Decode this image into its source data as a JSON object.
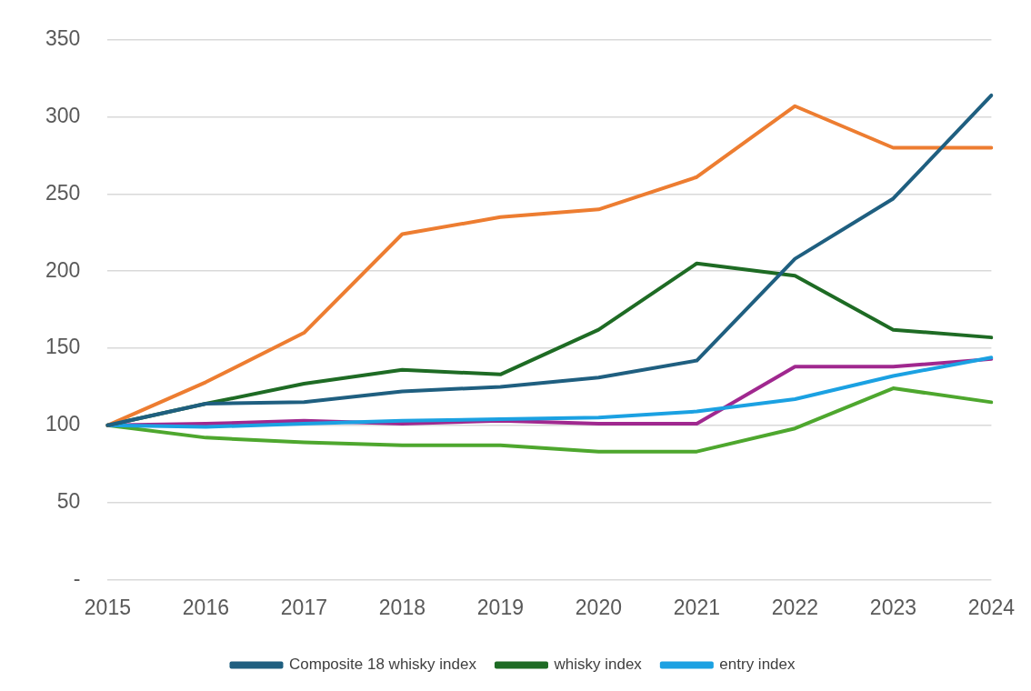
{
  "chart_data": {
    "type": "line",
    "categories": [
      "2015",
      "2016",
      "2017",
      "2018",
      "2019",
      "2020",
      "2021",
      "2022",
      "2023",
      "2024"
    ],
    "series": [
      {
        "name": "Composite 18 whisky index",
        "color": "#1f5f80",
        "values": [
          100,
          114,
          115,
          122,
          125,
          131,
          142,
          208,
          247,
          314
        ]
      },
      {
        "color": "#ed7d31",
        "values": [
          100,
          128,
          160,
          224,
          235,
          240,
          261,
          307,
          280,
          280
        ]
      },
      {
        "name": "whisky index",
        "color": "#1e6b24",
        "values": [
          100,
          114,
          127,
          136,
          133,
          162,
          205,
          197,
          162,
          157
        ]
      },
      {
        "name": "entry index",
        "color": "#1ba1e2",
        "values": [
          100,
          99,
          101,
          103,
          104,
          105,
          109,
          117,
          132,
          144
        ]
      },
      {
        "color": "#a0288f",
        "values": [
          100,
          101,
          103,
          101,
          103,
          101,
          101,
          138,
          138,
          143
        ]
      },
      {
        "color": "#4ea72e",
        "values": [
          100,
          92,
          89,
          87,
          87,
          83,
          83,
          98,
          124,
          115
        ]
      }
    ],
    "ylim": [
      0,
      350
    ],
    "yticks": [
      {
        "value": 0,
        "label": "-"
      },
      50,
      100,
      150,
      200,
      250,
      300,
      350
    ],
    "grid": "y",
    "legend": "bottom"
  }
}
